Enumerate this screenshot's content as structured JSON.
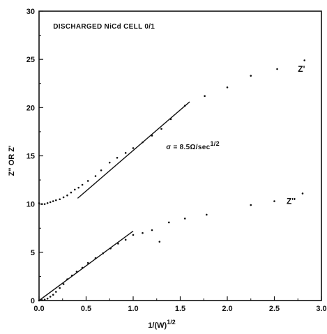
{
  "chart_data": {
    "type": "scatter",
    "title": "",
    "xlabel": "1/(W)^1/2",
    "ylabel": "Z\" OR Z'",
    "xlim": [
      0,
      3.0
    ],
    "ylim": [
      0,
      30
    ],
    "x_ticks": [
      "0.0",
      "0.5",
      "1.0",
      "1.5",
      "2.0",
      "2.5",
      "3.0"
    ],
    "y_ticks": [
      "0",
      "5",
      "10",
      "15",
      "20",
      "25",
      "30"
    ],
    "grid": false,
    "annotations": [
      {
        "text": "DISCHARGED NiCd CELL 0/1",
        "x": 0.15,
        "y": 28.2
      },
      {
        "text": "σ = 8.5Ω/sec^1/2",
        "x": 1.35,
        "y": 15.7
      }
    ],
    "series": [
      {
        "name": "Z'",
        "label_at": [
          2.75,
          23.7
        ],
        "points": [
          [
            0.0,
            10.1
          ],
          [
            0.03,
            10.0
          ],
          [
            0.06,
            10.0
          ],
          [
            0.09,
            10.1
          ],
          [
            0.12,
            10.2
          ],
          [
            0.15,
            10.3
          ],
          [
            0.18,
            10.4
          ],
          [
            0.22,
            10.5
          ],
          [
            0.26,
            10.7
          ],
          [
            0.3,
            10.9
          ],
          [
            0.34,
            11.2
          ],
          [
            0.38,
            11.5
          ],
          [
            0.42,
            11.7
          ],
          [
            0.46,
            12.0
          ],
          [
            0.52,
            12.4
          ],
          [
            0.6,
            12.9
          ],
          [
            0.66,
            13.5
          ],
          [
            0.75,
            14.3
          ],
          [
            0.83,
            14.8
          ],
          [
            0.92,
            15.3
          ],
          [
            1.0,
            15.8
          ],
          [
            1.1,
            16.4
          ],
          [
            1.2,
            17.1
          ],
          [
            1.3,
            17.8
          ],
          [
            1.4,
            18.8
          ],
          [
            1.55,
            20.2
          ],
          [
            1.76,
            21.2
          ],
          [
            2.0,
            22.1
          ],
          [
            2.25,
            23.3
          ],
          [
            2.53,
            24.0
          ],
          [
            2.82,
            24.9
          ]
        ],
        "fit_line": [
          [
            0.41,
            10.6
          ],
          [
            1.6,
            20.6
          ]
        ]
      },
      {
        "name": "Z''",
        "label_at": [
          2.63,
          10.0
        ],
        "points": [
          [
            0.0,
            0.0
          ],
          [
            0.03,
            0.05
          ],
          [
            0.06,
            0.1
          ],
          [
            0.09,
            0.2
          ],
          [
            0.12,
            0.4
          ],
          [
            0.15,
            0.6
          ],
          [
            0.18,
            0.9
          ],
          [
            0.22,
            1.3
          ],
          [
            0.26,
            1.7
          ],
          [
            0.3,
            2.2
          ],
          [
            0.35,
            2.6
          ],
          [
            0.4,
            3.0
          ],
          [
            0.46,
            3.4
          ],
          [
            0.52,
            3.9
          ],
          [
            0.6,
            4.4
          ],
          [
            0.68,
            4.9
          ],
          [
            0.76,
            5.4
          ],
          [
            0.84,
            5.9
          ],
          [
            0.92,
            6.3
          ],
          [
            1.0,
            6.8
          ],
          [
            1.1,
            7.0
          ],
          [
            1.2,
            7.3
          ],
          [
            1.28,
            6.1
          ],
          [
            1.38,
            8.1
          ],
          [
            1.55,
            8.5
          ],
          [
            1.78,
            8.9
          ],
          [
            2.25,
            9.9
          ],
          [
            2.5,
            10.3
          ],
          [
            2.8,
            11.1
          ]
        ],
        "fit_line": [
          [
            0.0,
            0.0
          ],
          [
            1.0,
            7.2
          ]
        ]
      }
    ]
  }
}
